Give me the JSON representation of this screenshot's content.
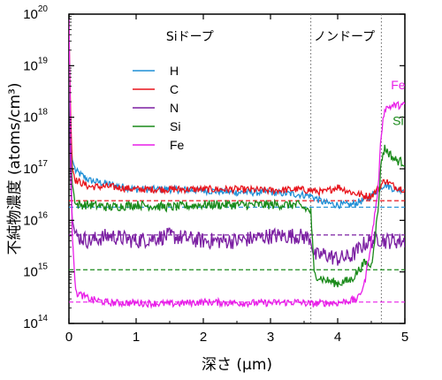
{
  "chart_data": {
    "type": "line",
    "xlabel": "深さ (μm)",
    "ylabel": "不純物濃度 (atoms/cm³)",
    "xlim": [
      0,
      5
    ],
    "ylim": [
      100000000000000.0,
      1e+20
    ],
    "yscale": "log",
    "x_ticks": [
      "0",
      "1",
      "2",
      "3",
      "4",
      "5"
    ],
    "y_ticks": [
      {
        "base": "10",
        "exp": "14"
      },
      {
        "base": "10",
        "exp": "15"
      },
      {
        "base": "10",
        "exp": "16"
      },
      {
        "base": "10",
        "exp": "17"
      },
      {
        "base": "10",
        "exp": "18"
      },
      {
        "base": "10",
        "exp": "19"
      },
      {
        "base": "10",
        "exp": "20"
      }
    ],
    "regions": [
      {
        "label": "Siドープ",
        "x": 1.8
      },
      {
        "label": "ノンドープ",
        "x": 4.1
      }
    ],
    "boundaries": [
      3.6,
      4.65
    ],
    "legend": [
      "H",
      "C",
      "N",
      "Si",
      "Fe"
    ],
    "colors": {
      "H": "#1f8fd6",
      "C": "#e8141c",
      "N": "#7b1fa2",
      "Si": "#1a8a1a",
      "Fe": "#e81ee8",
      "boundary": "#666666"
    },
    "end_labels": [
      {
        "name": "Fe",
        "x": 4.9,
        "y": 3e+18
      },
      {
        "name": "Si",
        "x": 4.9,
        "y": 6e+17
      }
    ],
    "reference_levels": [
      {
        "name": "C",
        "y": 2.4e+16
      },
      {
        "name": "H",
        "y": 1.8e+16
      },
      {
        "name": "N",
        "y": 5200000000000000.0
      },
      {
        "name": "Si",
        "y": 1100000000000000.0
      },
      {
        "name": "Fe",
        "y": 260000000000000.0
      }
    ],
    "series": [
      {
        "name": "H",
        "x": [
          0,
          0.02,
          0.05,
          0.1,
          0.3,
          0.6,
          1,
          1.5,
          2,
          2.5,
          3,
          3.4,
          3.6,
          3.8,
          4,
          4.2,
          4.4,
          4.5,
          4.6,
          4.7,
          4.85,
          5
        ],
        "y": [
          9e+18,
          5e+17,
          1.5e+17,
          9e+16,
          6e+16,
          5e+16,
          4e+16,
          4e+16,
          3.8e+16,
          3.5e+16,
          3.5e+16,
          3.2e+16,
          3e+16,
          2.2e+16,
          2e+16,
          2e+16,
          2.5e+16,
          3e+16,
          4e+16,
          5e+16,
          4e+16,
          4e+16
        ]
      },
      {
        "name": "C",
        "x": [
          0,
          0.02,
          0.05,
          0.1,
          0.3,
          0.6,
          1,
          1.5,
          2,
          2.5,
          3,
          3.4,
          3.6,
          3.8,
          4,
          4.2,
          4.4,
          4.5,
          4.6,
          4.7,
          4.85,
          5
        ],
        "y": [
          5e+19,
          2e+18,
          1e+17,
          6e+16,
          4.5e+16,
          4.5e+16,
          4e+16,
          4e+16,
          4e+16,
          4e+16,
          3.8e+16,
          4e+16,
          3.8e+16,
          3.5e+16,
          4.5e+16,
          3.5e+16,
          3e+16,
          3e+16,
          4e+16,
          6e+16,
          4.5e+16,
          4e+16
        ]
      },
      {
        "name": "N",
        "x": [
          0,
          0.02,
          0.05,
          0.1,
          0.3,
          0.6,
          1,
          1.5,
          2,
          2.5,
          3,
          3.4,
          3.6,
          3.65,
          3.8,
          4,
          4.2,
          4.4,
          4.5,
          4.6,
          4.7,
          4.85,
          5
        ],
        "y": [
          2e+19,
          1e+17,
          1e+16,
          5000000000000000.0,
          4000000000000000.0,
          5000000000000000.0,
          4000000000000000.0,
          5000000000000000.0,
          4000000000000000.0,
          4000000000000000.0,
          5000000000000000.0,
          5000000000000000.0,
          4500000000000000.0,
          2000000000000000.0,
          2200000000000000.0,
          1800000000000000.0,
          2000000000000000.0,
          3500000000000000.0,
          4000000000000000.0,
          4500000000000000.0,
          4000000000000000.0,
          4000000000000000.0,
          4000000000000000.0
        ]
      },
      {
        "name": "Si",
        "x": [
          0,
          0.02,
          0.05,
          0.1,
          0.3,
          0.6,
          1,
          1.5,
          2,
          2.5,
          3,
          3.4,
          3.6,
          3.65,
          3.8,
          4,
          4.2,
          4.4,
          4.5,
          4.6,
          4.65,
          4.7,
          4.85,
          5
        ],
        "y": [
          3e+19,
          5e+17,
          5e+16,
          2e+16,
          2e+16,
          1.8e+16,
          2e+16,
          1.8e+16,
          2e+16,
          2e+16,
          2e+16,
          2e+16,
          1.5e+16,
          900000000000000.0,
          700000000000000.0,
          600000000000000.0,
          700000000000000.0,
          1500000000000000.0,
          1300000000000000.0,
          1.5e+16,
          1.5e+17,
          2.5e+17,
          1.5e+17,
          1.3e+17
        ]
      },
      {
        "name": "Fe",
        "x": [
          0,
          0.02,
          0.05,
          0.1,
          0.3,
          0.6,
          1,
          1.5,
          2,
          2.5,
          3,
          3.4,
          3.6,
          3.8,
          4,
          4.2,
          4.3,
          4.4,
          4.5,
          4.6,
          4.65,
          4.7,
          4.85,
          5
        ],
        "y": [
          8e+19,
          1e+18,
          5000000000000000.0,
          400000000000000.0,
          300000000000000.0,
          250000000000000.0,
          250000000000000.0,
          240000000000000.0,
          260000000000000.0,
          250000000000000.0,
          250000000000000.0,
          260000000000000.0,
          240000000000000.0,
          250000000000000.0,
          250000000000000.0,
          280000000000000.0,
          300000000000000.0,
          600000000000000.0,
          4000000000000000.0,
          4e+16,
          5e+17,
          1.5e+18,
          1.7e+18,
          1.7e+18
        ]
      }
    ]
  }
}
